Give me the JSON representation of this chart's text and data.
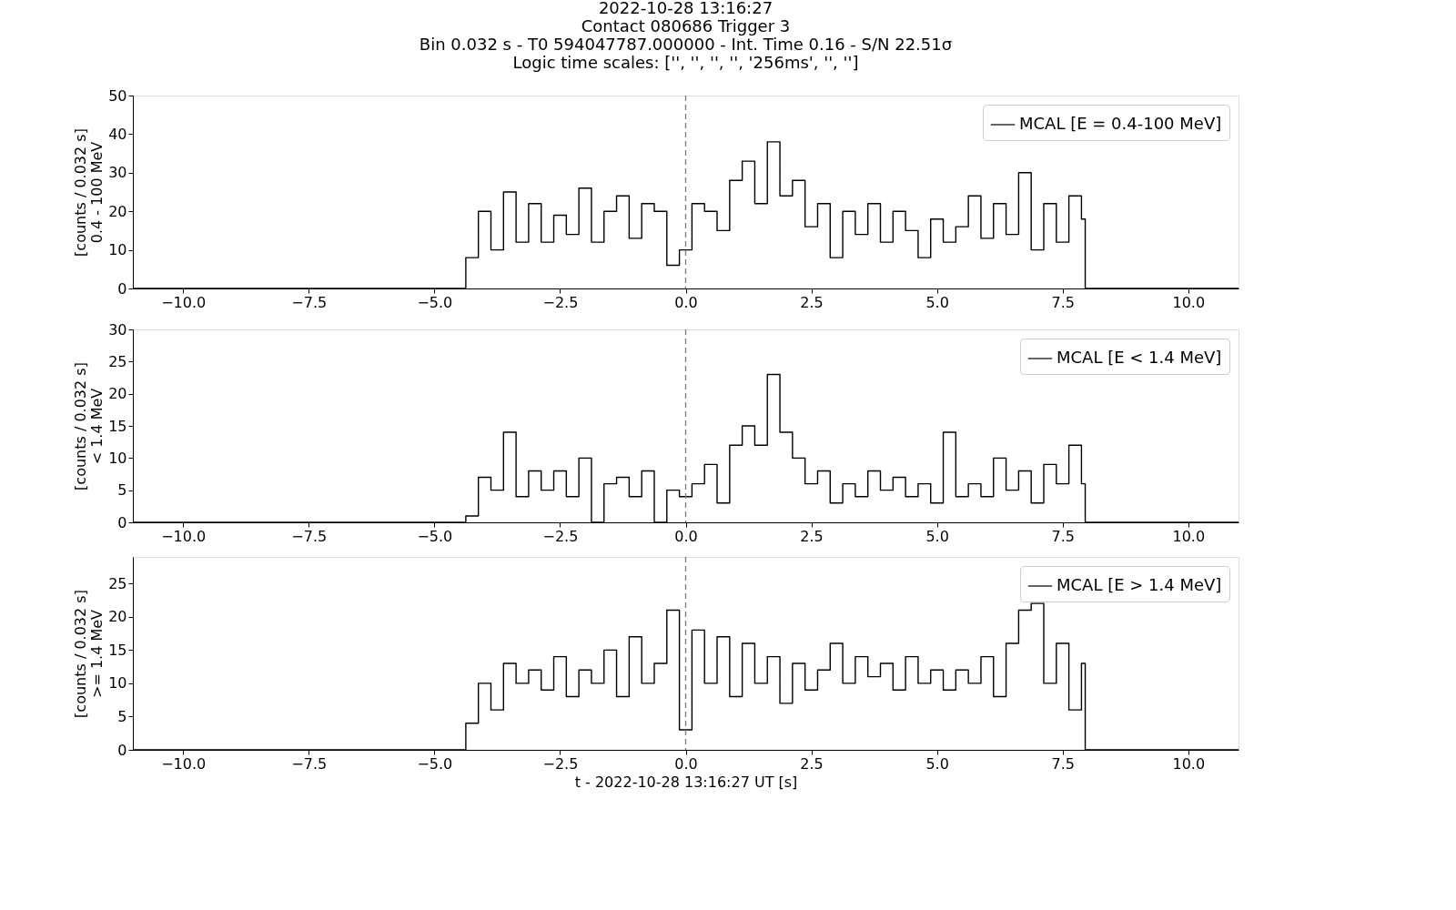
{
  "chart_data": [
    {
      "type": "step",
      "title": "2022-10-28 13:16:27",
      "subtitle": "Contact 080686   Trigger 3\nBin 0.032 s - T0 594047787.000000 - Int. Time 0.16 - S/N 22.51σ\nLogic time scales: ['', '', '', '', '256ms', '', '']",
      "ylabel": "[counts / 0.032 s]\n0.4 - 100 MeV",
      "x": [
        -11,
        -4.375,
        -4.125,
        -3.875,
        -3.625,
        -3.375,
        -3.125,
        -2.875,
        -2.625,
        -2.375,
        -2.125,
        -1.875,
        -1.625,
        -1.375,
        -1.125,
        -0.875,
        -0.625,
        -0.375,
        -0.125,
        0.125,
        0.375,
        0.625,
        0.875,
        1.125,
        1.375,
        1.625,
        1.875,
        2.125,
        2.375,
        2.625,
        2.875,
        3.125,
        3.375,
        3.625,
        3.875,
        4.125,
        4.375,
        4.625,
        4.875,
        5.125,
        5.375,
        5.625,
        5.875,
        6.125,
        6.375,
        6.625,
        6.875,
        7.125,
        7.375,
        7.625,
        7.875,
        7.95,
        11
      ],
      "series": [
        {
          "name": "MCAL [E = 0.4-100 MeV]",
          "color": "#000000",
          "values": [
            0,
            8,
            20,
            10,
            25,
            12,
            22,
            12,
            19,
            14,
            26,
            12,
            20,
            24,
            13,
            22,
            20,
            6,
            10,
            22,
            20,
            15,
            28,
            33,
            22,
            38,
            24,
            28,
            16,
            22,
            8,
            20,
            14,
            22,
            12,
            20,
            15,
            8,
            18,
            12,
            16,
            24,
            13,
            22,
            14,
            30,
            10,
            22,
            12,
            24,
            18,
            0,
            0
          ]
        }
      ],
      "xlim": [
        -11,
        11
      ],
      "xticks": [
        {
          "value": -10,
          "label": "−10.0"
        },
        {
          "value": -7.5,
          "label": "−7.5"
        },
        {
          "value": -5,
          "label": "−5.0"
        },
        {
          "value": -2.5,
          "label": "−2.5"
        },
        {
          "value": 0,
          "label": "0.0"
        },
        {
          "value": 2.5,
          "label": "2.5"
        },
        {
          "value": 5,
          "label": "5.0"
        },
        {
          "value": 7.5,
          "label": "7.5"
        },
        {
          "value": 10,
          "label": "10.0"
        }
      ],
      "ylim": [
        0,
        50
      ],
      "yticks": [
        0,
        10,
        20,
        30,
        40,
        50
      ],
      "ref_lines": [
        {
          "axis": "x",
          "value": 0,
          "color": "#808080",
          "line_style": "dashed"
        }
      ],
      "legend": "top right",
      "grid": false
    },
    {
      "type": "step",
      "ylabel": "[counts / 0.032 s]\n< 1.4 MeV",
      "x": [
        -11,
        -4.375,
        -4.125,
        -3.875,
        -3.625,
        -3.375,
        -3.125,
        -2.875,
        -2.625,
        -2.375,
        -2.125,
        -1.875,
        -1.625,
        -1.375,
        -1.125,
        -0.875,
        -0.625,
        -0.375,
        -0.125,
        0.125,
        0.375,
        0.625,
        0.875,
        1.125,
        1.375,
        1.625,
        1.875,
        2.125,
        2.375,
        2.625,
        2.875,
        3.125,
        3.375,
        3.625,
        3.875,
        4.125,
        4.375,
        4.625,
        4.875,
        5.125,
        5.375,
        5.625,
        5.875,
        6.125,
        6.375,
        6.625,
        6.875,
        7.125,
        7.375,
        7.625,
        7.875,
        7.95,
        11
      ],
      "series": [
        {
          "name": "MCAL [E < 1.4 MeV]",
          "color": "#000000",
          "values": [
            0,
            1,
            7,
            5,
            14,
            4,
            8,
            5,
            8,
            4,
            10,
            0,
            6,
            7,
            4,
            8,
            0,
            5,
            4,
            6,
            9,
            3,
            12,
            15,
            12,
            23,
            14,
            10,
            6,
            8,
            3,
            6,
            4,
            8,
            5,
            7,
            4,
            6,
            3,
            14,
            4,
            6,
            4,
            10,
            5,
            8,
            3,
            9,
            6,
            12,
            6,
            0,
            0
          ]
        }
      ],
      "xlim": [
        -11,
        11
      ],
      "xticks": [
        {
          "value": -10,
          "label": "−10.0"
        },
        {
          "value": -7.5,
          "label": "−7.5"
        },
        {
          "value": -5,
          "label": "−5.0"
        },
        {
          "value": -2.5,
          "label": "−2.5"
        },
        {
          "value": 0,
          "label": "0.0"
        },
        {
          "value": 2.5,
          "label": "2.5"
        },
        {
          "value": 5,
          "label": "5.0"
        },
        {
          "value": 7.5,
          "label": "7.5"
        },
        {
          "value": 10,
          "label": "10.0"
        }
      ],
      "ylim": [
        0,
        30
      ],
      "yticks": [
        0,
        5,
        10,
        15,
        20,
        25,
        30
      ],
      "ref_lines": [
        {
          "axis": "x",
          "value": 0,
          "color": "#808080",
          "line_style": "dashed"
        }
      ],
      "legend": "top right",
      "grid": false
    },
    {
      "type": "step",
      "xlabel": "t - 2022-10-28 13:16:27 UT [s]",
      "ylabel": "[counts / 0.032 s]\n>= 1.4 MeV",
      "x": [
        -11,
        -4.375,
        -4.125,
        -3.875,
        -3.625,
        -3.375,
        -3.125,
        -2.875,
        -2.625,
        -2.375,
        -2.125,
        -1.875,
        -1.625,
        -1.375,
        -1.125,
        -0.875,
        -0.625,
        -0.375,
        -0.125,
        0.125,
        0.375,
        0.625,
        0.875,
        1.125,
        1.375,
        1.625,
        1.875,
        2.125,
        2.375,
        2.625,
        2.875,
        3.125,
        3.375,
        3.625,
        3.875,
        4.125,
        4.375,
        4.625,
        4.875,
        5.125,
        5.375,
        5.625,
        5.875,
        6.125,
        6.375,
        6.625,
        6.875,
        7.125,
        7.375,
        7.625,
        7.875,
        7.95,
        11
      ],
      "series": [
        {
          "name": "MCAL [E > 1.4 MeV]",
          "color": "#000000",
          "values": [
            0,
            4,
            10,
            6,
            13,
            10,
            12,
            9,
            14,
            8,
            12,
            10,
            15,
            8,
            17,
            10,
            13,
            21,
            3,
            18,
            10,
            17,
            8,
            16,
            10,
            14,
            7,
            13,
            9,
            12,
            16,
            10,
            14,
            11,
            13,
            9,
            14,
            10,
            12,
            9,
            12,
            10,
            14,
            8,
            16,
            21,
            22,
            10,
            16,
            6,
            13,
            0,
            0
          ]
        }
      ],
      "xlim": [
        -11,
        11
      ],
      "xticks": [
        {
          "value": -10,
          "label": "−10.0"
        },
        {
          "value": -7.5,
          "label": "−7.5"
        },
        {
          "value": -5,
          "label": "−5.0"
        },
        {
          "value": -2.5,
          "label": "−2.5"
        },
        {
          "value": 0,
          "label": "0.0"
        },
        {
          "value": 2.5,
          "label": "2.5"
        },
        {
          "value": 5,
          "label": "5.0"
        },
        {
          "value": 7.5,
          "label": "7.5"
        },
        {
          "value": 10,
          "label": "10.0"
        }
      ],
      "ylim": [
        0,
        29
      ],
      "yticks": [
        0,
        5,
        10,
        15,
        20,
        25
      ],
      "ref_lines": [
        {
          "axis": "x",
          "value": 0,
          "color": "#808080",
          "line_style": "dashed"
        }
      ],
      "legend": "top right",
      "grid": false
    }
  ]
}
